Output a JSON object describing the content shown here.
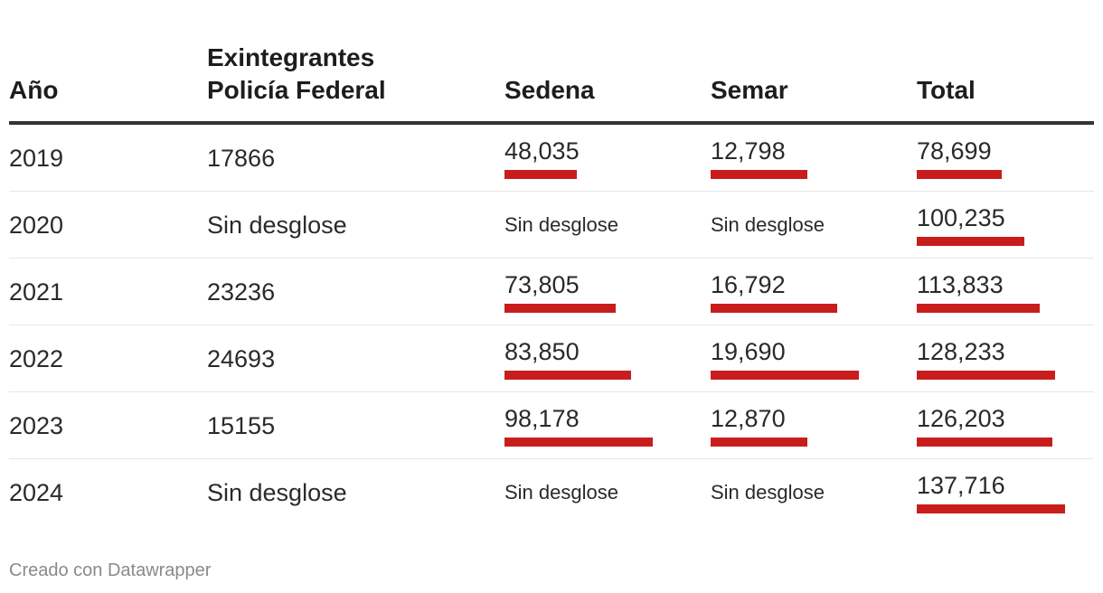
{
  "chart_data": {
    "type": "table",
    "columns": [
      "Año",
      "Exintegrantes Policía Federal",
      "Sedena",
      "Semar",
      "Total"
    ],
    "header_lines": {
      "anio": "Año",
      "pf_line1": "Exintegrantes",
      "pf_line2": "Policía Federal",
      "sedena": "Sedena",
      "semar": "Semar",
      "total": "Total"
    },
    "bar_color": "#c91d1d",
    "bar_max": {
      "sedena": 98178,
      "semar": 19690,
      "total": 137716
    },
    "rows": [
      {
        "year": "2019",
        "pf": "17866",
        "sedena": "48,035",
        "sedena_value": 48035,
        "semar": "12,798",
        "semar_value": 12798,
        "total": "78,699",
        "total_value": 78699
      },
      {
        "year": "2020",
        "pf": "Sin desglose",
        "sedena": "Sin desglose",
        "sedena_value": null,
        "semar": "Sin desglose",
        "semar_value": null,
        "total": "100,235",
        "total_value": 100235
      },
      {
        "year": "2021",
        "pf": "23236",
        "sedena": "73,805",
        "sedena_value": 73805,
        "semar": "16,792",
        "semar_value": 16792,
        "total": "113,833",
        "total_value": 113833
      },
      {
        "year": "2022",
        "pf": "24693",
        "sedena": "83,850",
        "sedena_value": 83850,
        "semar": "19,690",
        "semar_value": 19690,
        "total": "128,233",
        "total_value": 128233
      },
      {
        "year": "2023",
        "pf": "15155",
        "sedena": "98,178",
        "sedena_value": 98178,
        "semar": "12,870",
        "semar_value": 12870,
        "total": "126,203",
        "total_value": 126203
      },
      {
        "year": "2024",
        "pf": "Sin desglose",
        "sedena": "Sin desglose",
        "sedena_value": null,
        "semar": "Sin desglose",
        "semar_value": null,
        "total": "137,716",
        "total_value": 137716
      }
    ]
  },
  "footer": {
    "credit": "Creado con Datawrapper"
  }
}
